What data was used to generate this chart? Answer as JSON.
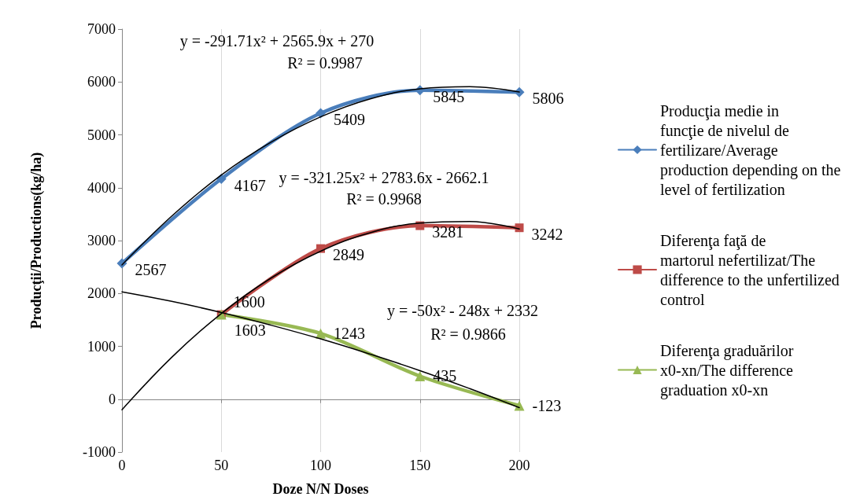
{
  "chart_data": {
    "type": "line",
    "xlabel": "Doze N/N Doses",
    "ylabel": "Producţii/Productions(kg/ha)",
    "xlim": [
      0,
      200
    ],
    "xticks": [
      0,
      50,
      100,
      150,
      200
    ],
    "ylim": [
      -1000,
      7000
    ],
    "yticks": [
      -1000,
      0,
      1000,
      2000,
      3000,
      4000,
      5000,
      6000,
      7000
    ],
    "grid": "x",
    "legend": "right",
    "series": [
      {
        "name": "Producţia medie in funcţie de nivelul de fertilizare/Average production depending on the level of fertilization",
        "color": "#4a7ebb",
        "marker": "diamond",
        "x": [
          0,
          50,
          100,
          150,
          200
        ],
        "values": [
          2567,
          4167,
          5409,
          5845,
          5806
        ],
        "value_labels": [
          "2567",
          "4167",
          "5409",
          "5845",
          "5806"
        ]
      },
      {
        "name": "Diferenţa faţă de martorul nefertilizat/The difference to the unfertilized control",
        "color": "#be4b48",
        "marker": "square",
        "x": [
          50,
          100,
          150,
          200
        ],
        "values": [
          1600,
          2849,
          3281,
          3242
        ],
        "value_labels": [
          "1600",
          "2849",
          "3281",
          "3242"
        ]
      },
      {
        "name": "Diferenţa graduărilor x0-xn/The difference graduation x0-xn",
        "color": "#98b954",
        "marker": "triangle",
        "x": [
          50,
          100,
          150,
          200
        ],
        "values": [
          1603,
          1243,
          435,
          -123
        ],
        "value_labels": [
          "1603",
          "1243",
          "435",
          "-123"
        ]
      },
      {
        "color": "#000000",
        "marker": "none",
        "x": [
          0,
          25,
          50,
          75,
          100,
          125,
          150,
          175,
          200
        ],
        "values": [
          2540,
          3460,
          4240,
          4860,
          5340,
          5680,
          5870,
          5910,
          5810
        ]
      },
      {
        "color": "#000000",
        "marker": "none",
        "x": [
          0,
          25,
          50,
          75,
          100,
          125,
          150,
          175,
          200
        ],
        "values": [
          -200,
          790,
          1620,
          2290,
          2800,
          3150,
          3330,
          3360,
          3220
        ]
      },
      {
        "color": "#000000",
        "marker": "none",
        "x": [
          0,
          25,
          50,
          75,
          100,
          125,
          150,
          175,
          200
        ],
        "values": [
          2030,
          1850,
          1640,
          1400,
          1140,
          850,
          540,
          200,
          -160
        ]
      }
    ],
    "annotations": [
      "y = -291.71x² + 2565.9x + 270",
      "R² = 0.9987",
      "y = -321.25x² + 2783.6x - 2662.1",
      "R² = 0.9968",
      "y = -50x² - 248x + 2332",
      "R² = 0.9866"
    ]
  }
}
